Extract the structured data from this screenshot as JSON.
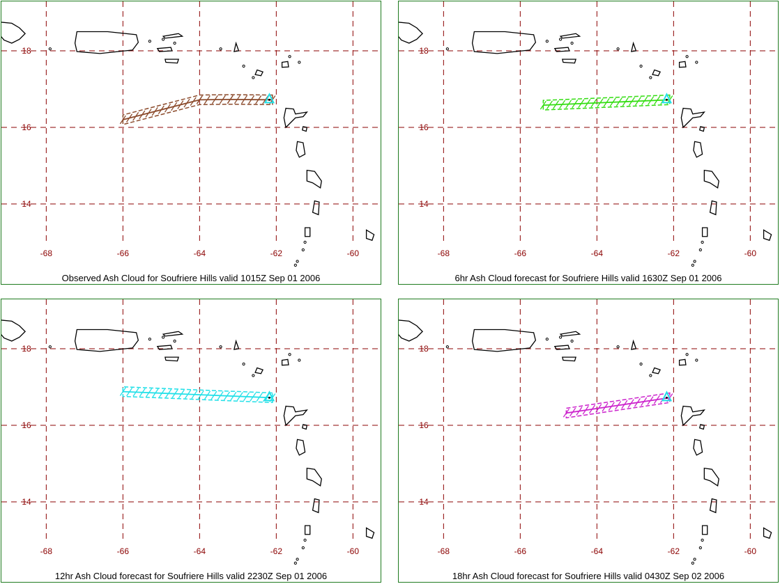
{
  "axes": {
    "lon_ticks": [
      "-68",
      "-66",
      "-64",
      "-62",
      "-60"
    ],
    "lat_ticks": [
      "18",
      "16",
      "14"
    ],
    "grid_color": "#8b0000",
    "label_color": "#8b0000"
  },
  "panels": [
    {
      "caption": "Observed Ash Cloud for Soufriere  Hills valid 1015Z Sep 01 2006",
      "cloud_color": "#8b4a2b",
      "cloud_track": [
        [
          -62.1,
          16.72
        ],
        [
          -63.2,
          16.73
        ],
        [
          -64.0,
          16.72
        ],
        [
          -66.0,
          16.2
        ]
      ],
      "cloud_width_deg": 0.25
    },
    {
      "caption": "6hr Ash Cloud forecast for Soufriere  Hills valid 1630Z Sep 01 2006",
      "cloud_color": "#33dd11",
      "cloud_track": [
        [
          -62.1,
          16.72
        ],
        [
          -65.4,
          16.58
        ]
      ],
      "cloud_width_deg": 0.25
    },
    {
      "caption": "12hr Ash Cloud forecast for Soufriere  Hills valid 2230Z Sep 01 2006",
      "cloud_color": "#22e0e8",
      "cloud_track": [
        [
          -62.1,
          16.72
        ],
        [
          -66.0,
          16.88
        ]
      ],
      "cloud_width_deg": 0.25
    },
    {
      "caption": "18hr Ash Cloud forecast for Soufriere  Hills valid 0430Z Sep 02 2006",
      "cloud_color": "#cc22cc",
      "cloud_track": [
        [
          -62.1,
          16.72
        ],
        [
          -64.8,
          16.32
        ]
      ],
      "cloud_width_deg": 0.25
    }
  ],
  "volcano_marker": {
    "lon": -62.18,
    "lat": 16.72,
    "color": "#22e0e8",
    "icon": "volcano-triangle-icon"
  },
  "coastline_color": "#000000"
}
